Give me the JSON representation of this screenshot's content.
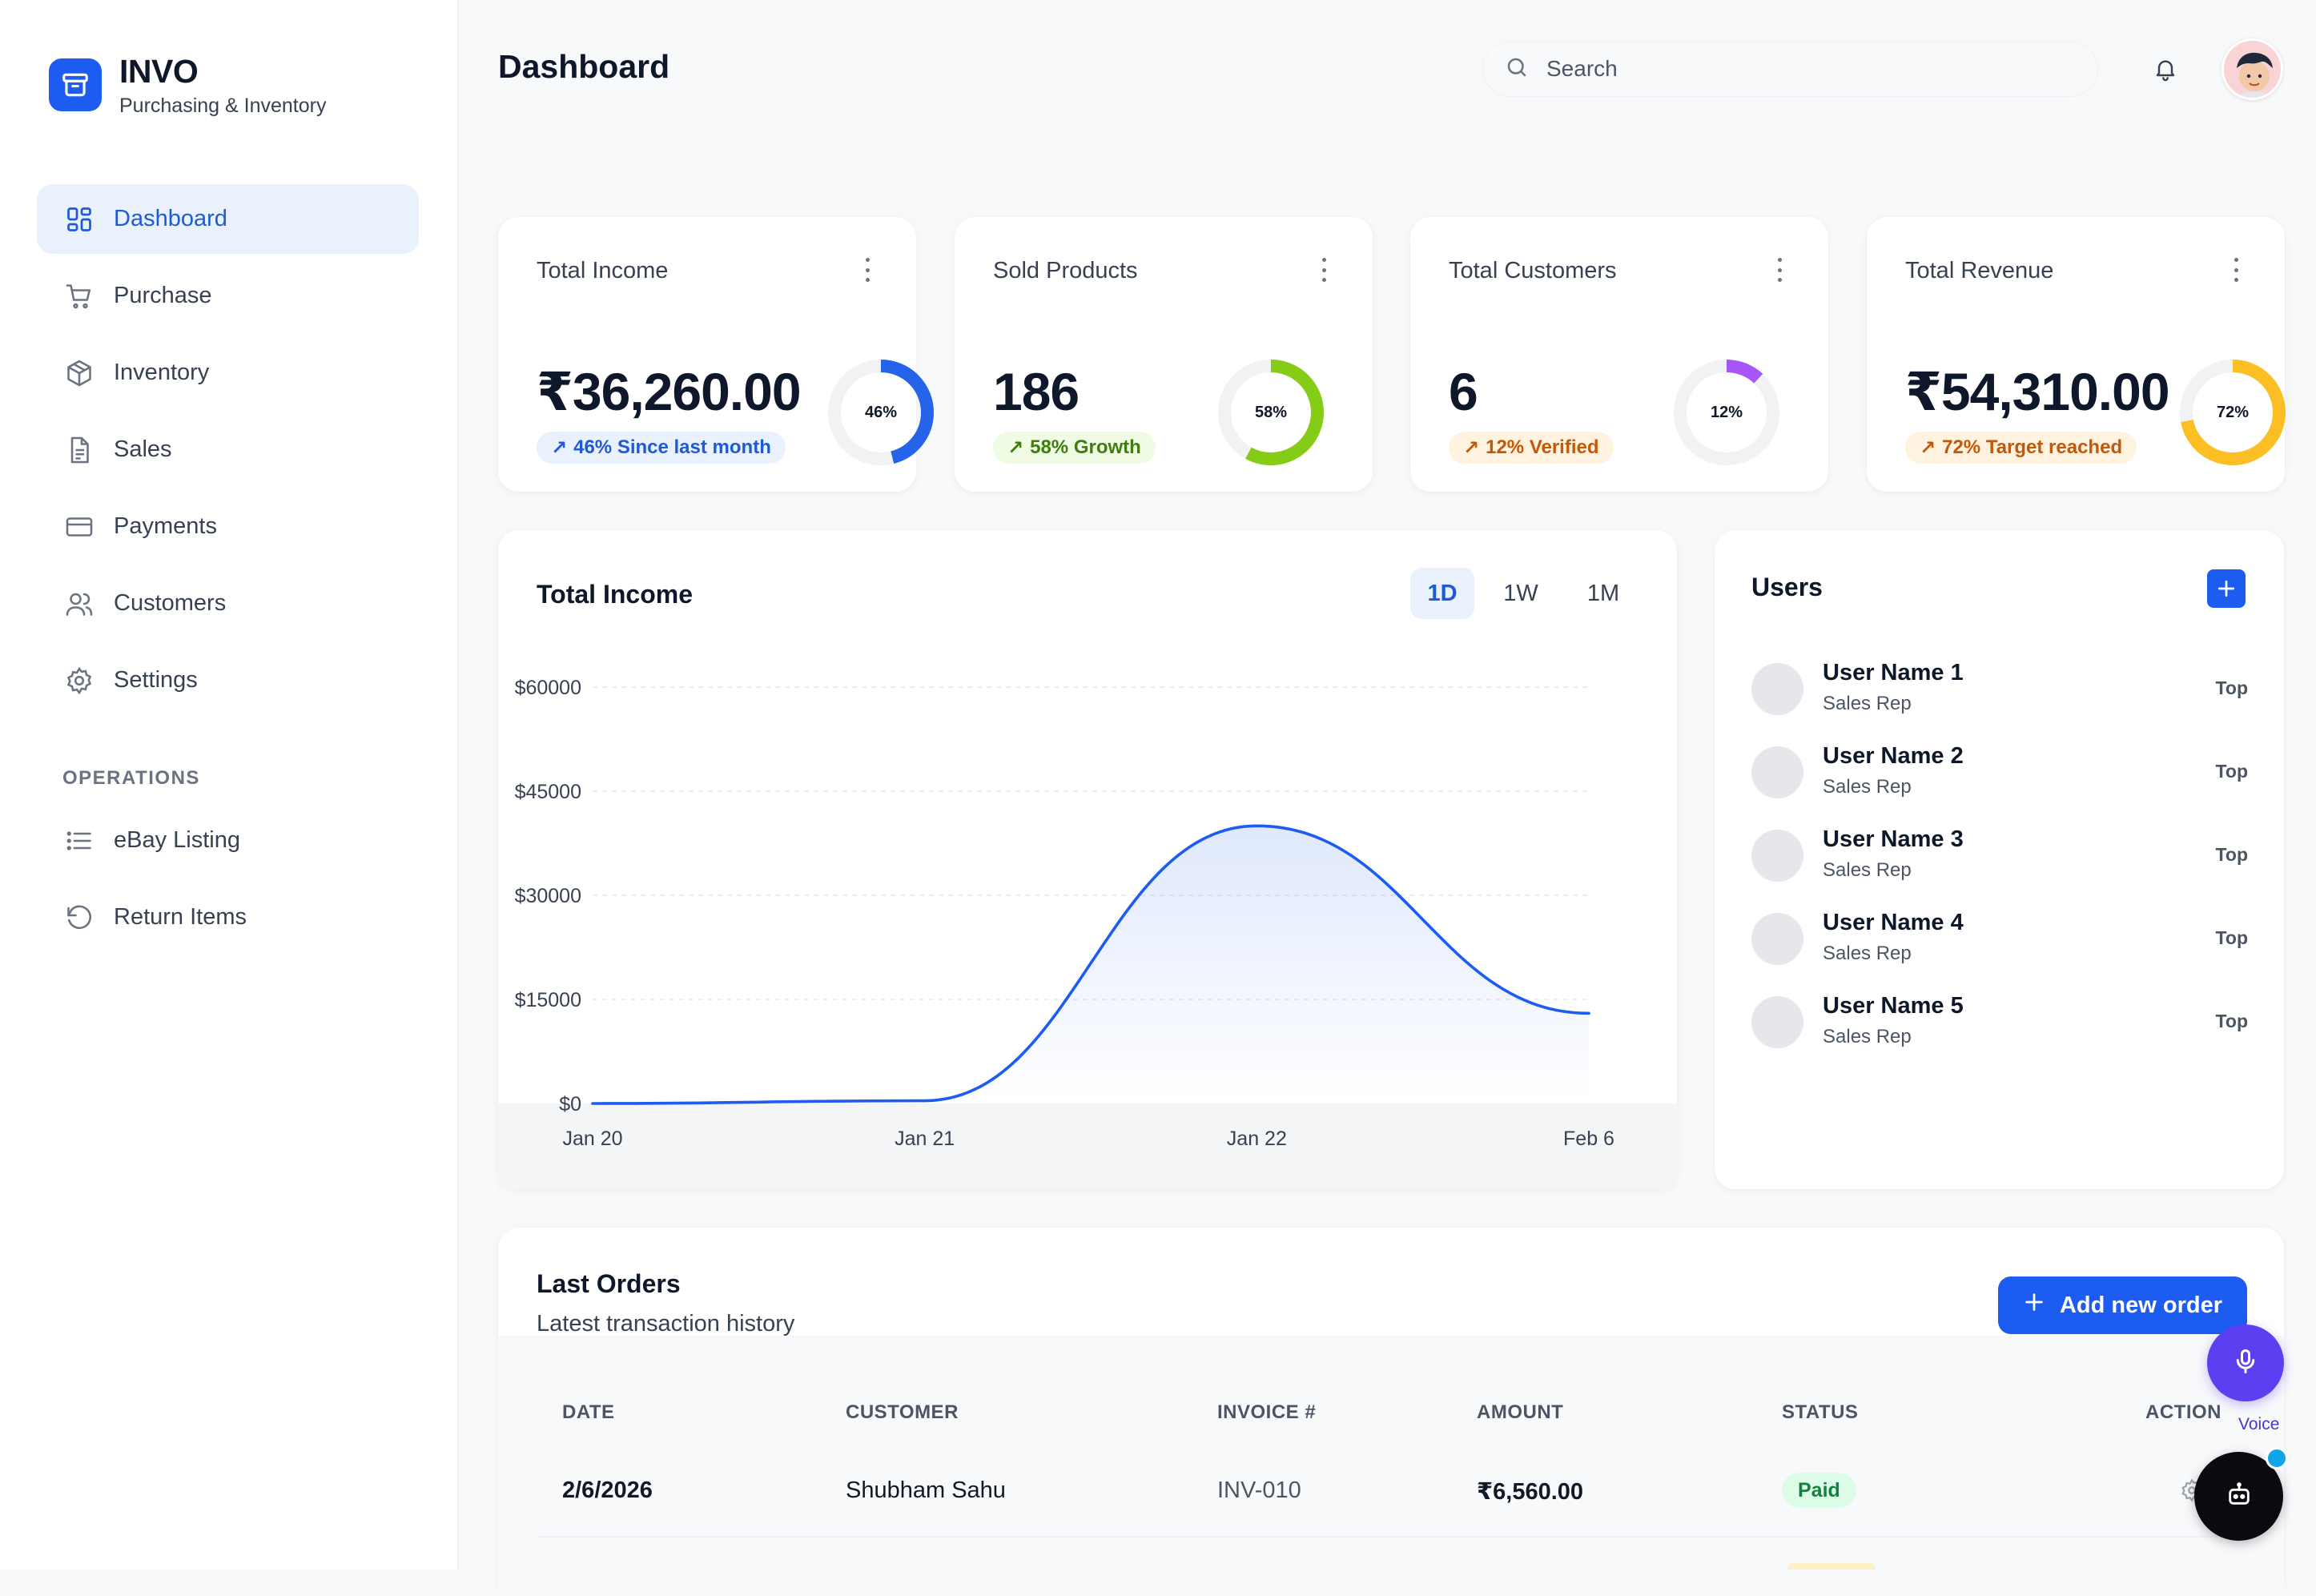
{
  "brand": {
    "name": "INVO",
    "tagline": "Purchasing & Inventory",
    "icon": "archive-box-icon"
  },
  "sidebar": {
    "items": [
      {
        "label": "Dashboard",
        "icon": "grid-icon",
        "active": true
      },
      {
        "label": "Purchase",
        "icon": "cart-icon"
      },
      {
        "label": "Inventory",
        "icon": "package-icon"
      },
      {
        "label": "Sales",
        "icon": "document-icon"
      },
      {
        "label": "Payments",
        "icon": "credit-card-icon"
      },
      {
        "label": "Customers",
        "icon": "users-icon"
      },
      {
        "label": "Settings",
        "icon": "gear-icon"
      }
    ],
    "operations_heading": "OPERATIONS",
    "operations": [
      {
        "label": "eBay Listing",
        "icon": "list-icon"
      },
      {
        "label": "Return Items",
        "icon": "rotate-ccw-icon"
      }
    ]
  },
  "header": {
    "title": "Dashboard",
    "search_placeholder": "Search",
    "search_icon": "search-icon",
    "bell_icon": "bell-icon"
  },
  "stats": [
    {
      "title": "Total Income",
      "value": "₹36,260.00",
      "badge": "46% Since last month",
      "percent": 46,
      "percent_label": "46%",
      "color": "#2563eb",
      "badge_bg": "#eaf1fe",
      "badge_color": "#1e5ad7"
    },
    {
      "title": "Sold Products",
      "value": "186",
      "badge": "58% Growth",
      "percent": 58,
      "percent_label": "58%",
      "color": "#84cc16",
      "badge_bg": "#f0fbe4",
      "badge_color": "#3f7d0c"
    },
    {
      "title": "Total Customers",
      "value": "6",
      "badge": "12% Verified",
      "percent": 12,
      "percent_label": "12%",
      "color": "#a855f7",
      "badge_bg": "#fff3e0",
      "badge_color": "#c2580a"
    },
    {
      "title": "Total Revenue",
      "value": "₹54,310.00",
      "badge": "72% Target reached",
      "percent": 72,
      "percent_label": "72%",
      "color": "#fbbf24",
      "badge_bg": "#fff3e0",
      "badge_color": "#c2580a"
    }
  ],
  "income_chart": {
    "title": "Total Income",
    "ranges": [
      {
        "label": "1D",
        "active": true
      },
      {
        "label": "1W"
      },
      {
        "label": "1M"
      }
    ]
  },
  "chart_data": {
    "type": "area",
    "categories": [
      "Jan 20",
      "Jan 21",
      "Jan 22",
      "Feb 6"
    ],
    "series": [
      {
        "values": [
          0,
          400,
          40000,
          13000
        ]
      }
    ],
    "yticks": [
      "$60000",
      "$45000",
      "$30000",
      "$15000",
      "$0"
    ],
    "ylim": [
      0,
      60000
    ],
    "grid": true,
    "line_color": "#1d5cf0"
  },
  "users": {
    "title": "Users",
    "add_icon": "plus-icon",
    "list": [
      {
        "name": "User Name 1",
        "role": "Sales Rep",
        "tag": "Top"
      },
      {
        "name": "User Name 2",
        "role": "Sales Rep",
        "tag": "Top"
      },
      {
        "name": "User Name 3",
        "role": "Sales Rep",
        "tag": "Top"
      },
      {
        "name": "User Name 4",
        "role": "Sales Rep",
        "tag": "Top"
      },
      {
        "name": "User Name 5",
        "role": "Sales Rep",
        "tag": "Top"
      }
    ]
  },
  "orders": {
    "title": "Last Orders",
    "subtitle": "Latest transaction history",
    "add_button": "Add new order",
    "columns": [
      "DATE",
      "CUSTOMER",
      "INVOICE #",
      "AMOUNT",
      "STATUS",
      "ACTION"
    ],
    "rows": [
      {
        "date": "2/6/2026",
        "customer": "Shubham Sahu",
        "invoice": "INV-010",
        "amount": "₹6,560.00",
        "status": "Paid"
      }
    ]
  },
  "floating": {
    "voice_label": "Voice",
    "voice_icon": "microphone-icon",
    "bot_icon": "robot-icon"
  }
}
